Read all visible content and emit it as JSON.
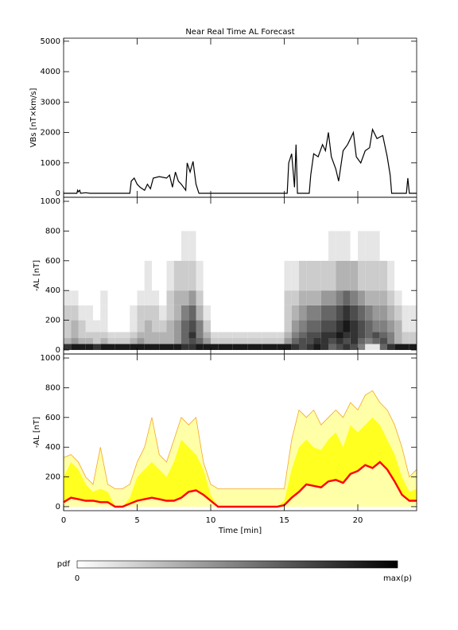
{
  "chart_data": [
    {
      "type": "line",
      "title": "Near Real Time AL Forecast",
      "ylabel": "VBs [nT×km/s]",
      "color": "#000000",
      "x": [
        0,
        0.9,
        0.95,
        1.0,
        1.1,
        1.15,
        1.5,
        1.8,
        4.5,
        4.6,
        4.8,
        5.0,
        5.2,
        5.5,
        5.7,
        5.9,
        6.1,
        6.5,
        7.0,
        7.2,
        7.4,
        7.6,
        7.8,
        8.0,
        8.3,
        8.4,
        8.6,
        8.8,
        9.0,
        9.2,
        15.2,
        15.3,
        15.5,
        15.7,
        15.8,
        15.9,
        16.7,
        16.8,
        17.0,
        17.3,
        17.6,
        17.8,
        18.0,
        18.2,
        18.5,
        18.7,
        19.0,
        19.3,
        19.5,
        19.7,
        19.9,
        20.2,
        20.5,
        20.8,
        21.0,
        21.3,
        21.7,
        22.0,
        22.2,
        22.3,
        23.3,
        23.4,
        23.5,
        24
      ],
      "values": [
        0,
        0,
        100,
        50,
        100,
        0,
        20,
        0,
        0,
        400,
        500,
        300,
        200,
        100,
        300,
        150,
        500,
        550,
        500,
        600,
        200,
        700,
        400,
        300,
        100,
        1000,
        700,
        1050,
        300,
        0,
        0,
        1000,
        1300,
        200,
        1600,
        0,
        0,
        600,
        1300,
        1200,
        1600,
        1400,
        2000,
        1200,
        800,
        400,
        1400,
        1600,
        1800,
        2000,
        1200,
        1000,
        1400,
        1500,
        2100,
        1800,
        1900,
        1200,
        600,
        0,
        0,
        500,
        0,
        0
      ],
      "xlim": [
        0,
        24
      ],
      "ylim": [
        -130,
        5100
      ],
      "xticks": [
        0,
        5,
        10,
        15,
        20
      ],
      "yticks": [
        0,
        1000,
        2000,
        3000,
        4000,
        5000
      ]
    },
    {
      "type": "heatmap",
      "ylabel": "-AL [nT]",
      "xbins": [
        0,
        0.5,
        1,
        1.5,
        2,
        2.5,
        3,
        3.5,
        4,
        4.5,
        5,
        5.5,
        6,
        6.5,
        7,
        7.5,
        8,
        8.5,
        9,
        9.5,
        10,
        10.5,
        11,
        11.5,
        12,
        12.5,
        13,
        13.5,
        14,
        14.5,
        15,
        15.5,
        16,
        16.5,
        17,
        17.5,
        18,
        18.5,
        19,
        19.5,
        20,
        20.5,
        21,
        21.5,
        22,
        22.5,
        23,
        23.5,
        24
      ],
      "ybins": [
        0,
        40,
        80,
        120,
        200,
        300,
        400,
        600,
        800
      ],
      "z": [
        [
          0.8,
          0.9,
          0.9,
          0.9,
          0.8,
          0.9,
          0.9,
          0.9,
          0.9,
          0.9,
          0.9,
          0.9,
          0.9,
          0.9,
          0.9,
          0.9,
          0.8,
          0.8,
          0.9,
          0.9,
          0.9,
          0.9,
          0.9,
          0.9,
          0.9,
          0.9,
          0.9,
          0.9,
          0.9,
          0.9,
          0.9,
          0.8,
          0.7,
          0.8,
          0.9,
          0.8,
          0.6,
          0.7,
          0.8,
          0.7,
          0.5,
          0.1,
          0.1,
          0.6,
          0.8,
          0.9,
          0.9,
          0.9
        ],
        [
          0.3,
          0.4,
          0.3,
          0.3,
          0.2,
          0.3,
          0.2,
          0.2,
          0.2,
          0.3,
          0.4,
          0.3,
          0.3,
          0.3,
          0.3,
          0.4,
          0.6,
          0.7,
          0.6,
          0.4,
          0.2,
          0.2,
          0.2,
          0.2,
          0.2,
          0.2,
          0.2,
          0.2,
          0.2,
          0.2,
          0.4,
          0.6,
          0.7,
          0.7,
          0.8,
          0.8,
          0.7,
          0.8,
          0.7,
          0.8,
          0.6,
          0.5,
          0.6,
          0.7,
          0.5,
          0.3,
          0.2,
          0.2
        ],
        [
          0.2,
          0.3,
          0.2,
          0.2,
          0.2,
          0.2,
          0.15,
          0.15,
          0.15,
          0.2,
          0.3,
          0.3,
          0.3,
          0.3,
          0.3,
          0.4,
          0.6,
          0.8,
          0.5,
          0.3,
          0.15,
          0.15,
          0.15,
          0.15,
          0.15,
          0.15,
          0.15,
          0.15,
          0.15,
          0.15,
          0.3,
          0.5,
          0.6,
          0.7,
          0.7,
          0.8,
          0.8,
          0.9,
          0.8,
          0.8,
          0.7,
          0.6,
          0.7,
          0.6,
          0.5,
          0.3,
          0.2,
          0.2
        ],
        [
          0.2,
          0.3,
          0.2,
          0.1,
          0.1,
          0.1,
          0,
          0,
          0,
          0.1,
          0.2,
          0.3,
          0.2,
          0.2,
          0.3,
          0.4,
          0.6,
          0.7,
          0.5,
          0.2,
          0,
          0,
          0,
          0,
          0,
          0,
          0,
          0,
          0,
          0,
          0.2,
          0.4,
          0.5,
          0.6,
          0.6,
          0.7,
          0.7,
          0.8,
          0.9,
          0.8,
          0.7,
          0.6,
          0.5,
          0.5,
          0.4,
          0.3,
          0.1,
          0.1
        ],
        [
          0.2,
          0.2,
          0.1,
          0.1,
          0,
          0.1,
          0,
          0,
          0,
          0.1,
          0.2,
          0.2,
          0.2,
          0.1,
          0.2,
          0.3,
          0.5,
          0.6,
          0.3,
          0.1,
          0,
          0,
          0,
          0,
          0,
          0,
          0,
          0,
          0,
          0,
          0.2,
          0.3,
          0.4,
          0.5,
          0.5,
          0.6,
          0.6,
          0.7,
          0.8,
          0.7,
          0.6,
          0.5,
          0.4,
          0.4,
          0.3,
          0.2,
          0.1,
          0.1
        ],
        [
          0.1,
          0.1,
          0,
          0,
          0,
          0.1,
          0,
          0,
          0,
          0,
          0.1,
          0.1,
          0.1,
          0,
          0.2,
          0.3,
          0.3,
          0.4,
          0.2,
          0,
          0,
          0,
          0,
          0,
          0,
          0,
          0,
          0,
          0,
          0,
          0.2,
          0.2,
          0.3,
          0.3,
          0.3,
          0.4,
          0.4,
          0.5,
          0.6,
          0.5,
          0.4,
          0.3,
          0.3,
          0.3,
          0.2,
          0.1,
          0,
          0
        ],
        [
          0,
          0,
          0,
          0,
          0,
          0,
          0,
          0,
          0,
          0,
          0,
          0.1,
          0,
          0,
          0.1,
          0.2,
          0.2,
          0.2,
          0.1,
          0,
          0,
          0,
          0,
          0,
          0,
          0,
          0,
          0,
          0,
          0,
          0.1,
          0.1,
          0.2,
          0.2,
          0.2,
          0.2,
          0.2,
          0.3,
          0.3,
          0.3,
          0.2,
          0.2,
          0.2,
          0.2,
          0.1,
          0,
          0,
          0
        ],
        [
          0,
          0,
          0,
          0,
          0,
          0,
          0,
          0,
          0,
          0,
          0,
          0,
          0,
          0,
          0,
          0,
          0.1,
          0.1,
          0,
          0,
          0,
          0,
          0,
          0,
          0,
          0,
          0,
          0,
          0,
          0,
          0,
          0,
          0,
          0,
          0,
          0,
          0.1,
          0.1,
          0.1,
          0,
          0.1,
          0.1,
          0.1,
          0,
          0,
          0,
          0,
          0
        ]
      ],
      "xlim": [
        0,
        24
      ],
      "ylim": [
        -27,
        1027
      ],
      "xticks": [
        0,
        5,
        10,
        15,
        20
      ],
      "yticks": [
        0,
        200,
        400,
        600,
        800,
        1000
      ]
    },
    {
      "type": "band",
      "ylabel": "-AL [nT]",
      "xlabel": "Time [min]",
      "x": [
        0,
        0.5,
        1,
        1.5,
        2,
        2.5,
        3,
        3.5,
        4,
        4.5,
        5,
        5.5,
        6,
        6.5,
        7,
        7.5,
        8,
        8.5,
        9,
        9.5,
        10,
        10.5,
        11,
        11.5,
        12,
        12.5,
        13,
        13.5,
        14,
        14.5,
        15,
        15.5,
        16,
        16.5,
        17,
        17.5,
        18,
        18.5,
        19,
        19.5,
        20,
        20.5,
        21,
        21.5,
        22,
        22.5,
        23,
        23.5,
        24
      ],
      "bands": [
        {
          "color": "#ffffa8",
          "edge": "#f5a623",
          "upper": [
            330,
            350,
            300,
            200,
            150,
            400,
            150,
            120,
            120,
            150,
            300,
            400,
            600,
            350,
            300,
            450,
            600,
            550,
            600,
            300,
            150,
            120,
            120,
            120,
            120,
            120,
            120,
            120,
            120,
            120,
            120,
            450,
            650,
            600,
            650,
            550,
            600,
            650,
            600,
            700,
            650,
            750,
            780,
            700,
            650,
            550,
            400,
            200,
            250
          ]
        },
        {
          "color": "#ffff20",
          "upper": [
            200,
            300,
            250,
            150,
            100,
            120,
            100,
            0,
            0,
            60,
            200,
            250,
            300,
            250,
            200,
            300,
            450,
            400,
            350,
            250,
            80,
            0,
            0,
            0,
            0,
            0,
            0,
            0,
            0,
            0,
            40,
            250,
            400,
            450,
            400,
            380,
            450,
            500,
            400,
            550,
            500,
            550,
            600,
            550,
            450,
            350,
            200,
            100,
            120
          ]
        }
      ],
      "series": [
        {
          "color": "#ff0000",
          "values": [
            30,
            60,
            50,
            40,
            40,
            30,
            30,
            0,
            0,
            20,
            40,
            50,
            60,
            50,
            40,
            40,
            60,
            100,
            110,
            80,
            40,
            0,
            0,
            0,
            0,
            0,
            0,
            0,
            0,
            0,
            10,
            60,
            100,
            150,
            140,
            130,
            170,
            180,
            160,
            220,
            240,
            280,
            260,
            300,
            250,
            170,
            80,
            40,
            40
          ]
        }
      ],
      "xlim": [
        0,
        24
      ],
      "ylim": [
        -27,
        1027
      ],
      "xticks": [
        0,
        5,
        10,
        15,
        20
      ],
      "yticks": [
        0,
        200,
        400,
        600,
        800,
        1000
      ]
    }
  ],
  "colorbar": {
    "title": "pdf",
    "min_label": "0",
    "max_label": "max(p)"
  }
}
